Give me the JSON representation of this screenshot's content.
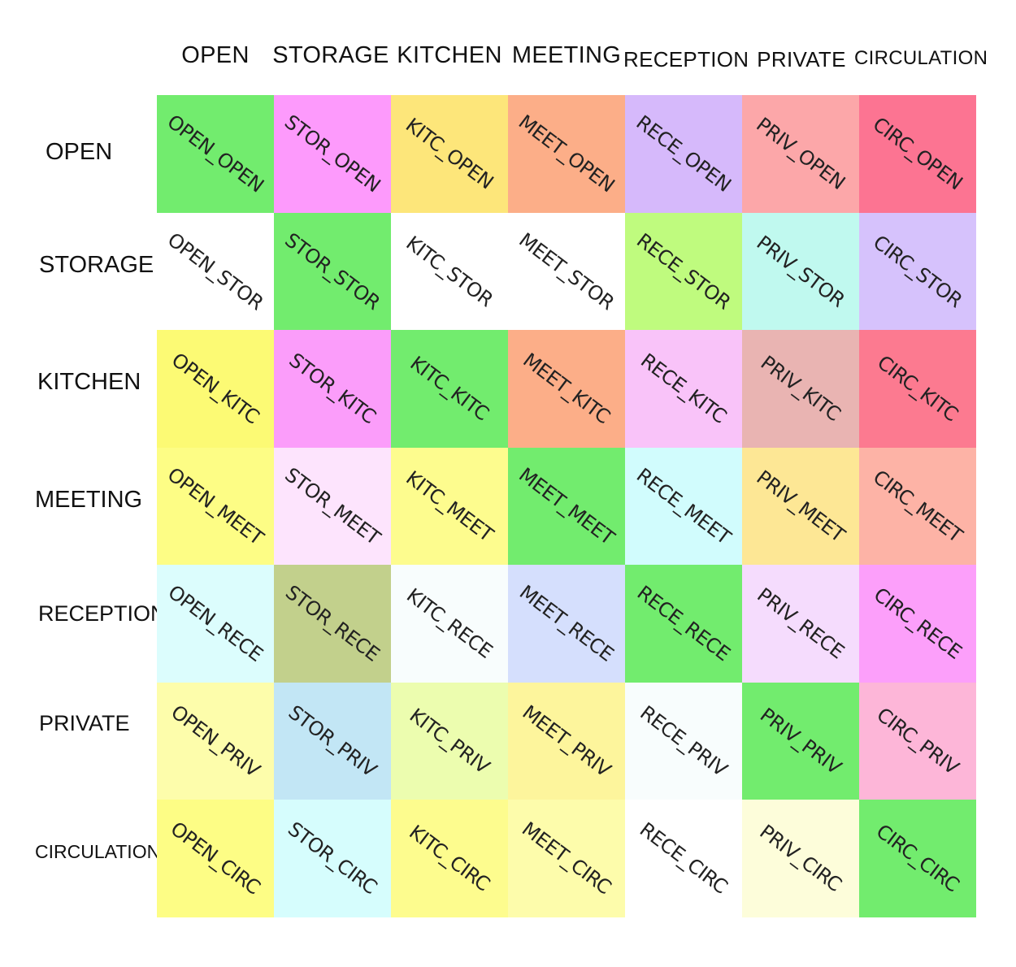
{
  "column_headers": [
    "OPEN",
    "STORAGE",
    "KITCHEN",
    "MEETING",
    "RECEPTION",
    "PRIVATE",
    "CIRCULATION"
  ],
  "row_headers": [
    "OPEN",
    "STORAGE",
    "KITCHEN",
    "MEETING",
    "RECEPTION",
    "PRIVATE",
    "CIRCULATION"
  ],
  "cells": [
    [
      {
        "label": "OPEN_OPEN",
        "color": "#72ec6e"
      },
      {
        "label": "STOR_OPEN",
        "color": "#fd9afc"
      },
      {
        "label": "KITC_OPEN",
        "color": "#fde67a"
      },
      {
        "label": "MEET_OPEN",
        "color": "#fcae88"
      },
      {
        "label": "RECE_OPEN",
        "color": "#d6b9fb"
      },
      {
        "label": "PRIV_OPEN",
        "color": "#fca7a9"
      },
      {
        "label": "CIRC_OPEN",
        "color": "#fc7492"
      }
    ],
    [
      {
        "label": "OPEN_STOR",
        "color": "#ffffff"
      },
      {
        "label": "STOR_STOR",
        "color": "#72ec6e"
      },
      {
        "label": "KITC_STOR",
        "color": "#ffffff"
      },
      {
        "label": "MEET_STOR",
        "color": "#ffffff"
      },
      {
        "label": "RECE_STOR",
        "color": "#bffb7e"
      },
      {
        "label": "PRIV_STOR",
        "color": "#c0f9ef"
      },
      {
        "label": "CIRC_STOR",
        "color": "#d6c2fc"
      }
    ],
    [
      {
        "label": "OPEN_KITC",
        "color": "#fcfa74"
      },
      {
        "label": "STOR_KITC",
        "color": "#fb9dfa"
      },
      {
        "label": "KITC_KITC",
        "color": "#72ec6e"
      },
      {
        "label": "MEET_KITC",
        "color": "#fcae88"
      },
      {
        "label": "RECE_KITC",
        "color": "#f9c3f9"
      },
      {
        "label": "PRIV_KITC",
        "color": "#e9b4b2"
      },
      {
        "label": "CIRC_KITC",
        "color": "#fc7a90"
      }
    ],
    [
      {
        "label": "OPEN_MEET",
        "color": "#fdfd85"
      },
      {
        "label": "STOR_MEET",
        "color": "#fde4fd"
      },
      {
        "label": "KITC_MEET",
        "color": "#fdfc8e"
      },
      {
        "label": "MEET_MEET",
        "color": "#72ec6e"
      },
      {
        "label": "RECE_MEET",
        "color": "#d1fcfd"
      },
      {
        "label": "PRIV_MEET",
        "color": "#fde795"
      },
      {
        "label": "CIRC_MEET",
        "color": "#fdb3a6"
      }
    ],
    [
      {
        "label": "OPEN_RECE",
        "color": "#dcfdfd"
      },
      {
        "label": "STOR_RECE",
        "color": "#c2d08c"
      },
      {
        "label": "KITC_RECE",
        "color": "#f8fdfd"
      },
      {
        "label": "MEET_RECE",
        "color": "#d5dffd"
      },
      {
        "label": "RECE_RECE",
        "color": "#72ec6e"
      },
      {
        "label": "PRIV_RECE",
        "color": "#f5dcfd"
      },
      {
        "label": "CIRC_RECE",
        "color": "#fc9ffa"
      }
    ],
    [
      {
        "label": "OPEN_PRIV",
        "color": "#fdfdab"
      },
      {
        "label": "STOR_PRIV",
        "color": "#c2e6f5"
      },
      {
        "label": "KITC_PRIV",
        "color": "#ecfdaf"
      },
      {
        "label": "MEET_PRIV",
        "color": "#fdf59c"
      },
      {
        "label": "RECE_PRIV",
        "color": "#f8fdfd"
      },
      {
        "label": "PRIV_PRIV",
        "color": "#72ec6e"
      },
      {
        "label": "CIRC_PRIV",
        "color": "#fdb6d8"
      }
    ],
    [
      {
        "label": "OPEN_CIRC",
        "color": "#fdfd85"
      },
      {
        "label": "STOR_CIRC",
        "color": "#d6fdfd"
      },
      {
        "label": "KITC_CIRC",
        "color": "#fdfc8e"
      },
      {
        "label": "MEET_CIRC",
        "color": "#fdfcab"
      },
      {
        "label": "RECE_CIRC",
        "color": "#ffffff"
      },
      {
        "label": "PRIV_CIRC",
        "color": "#fdfdda"
      },
      {
        "label": "CIRC_CIRC",
        "color": "#72ec6e"
      }
    ]
  ]
}
